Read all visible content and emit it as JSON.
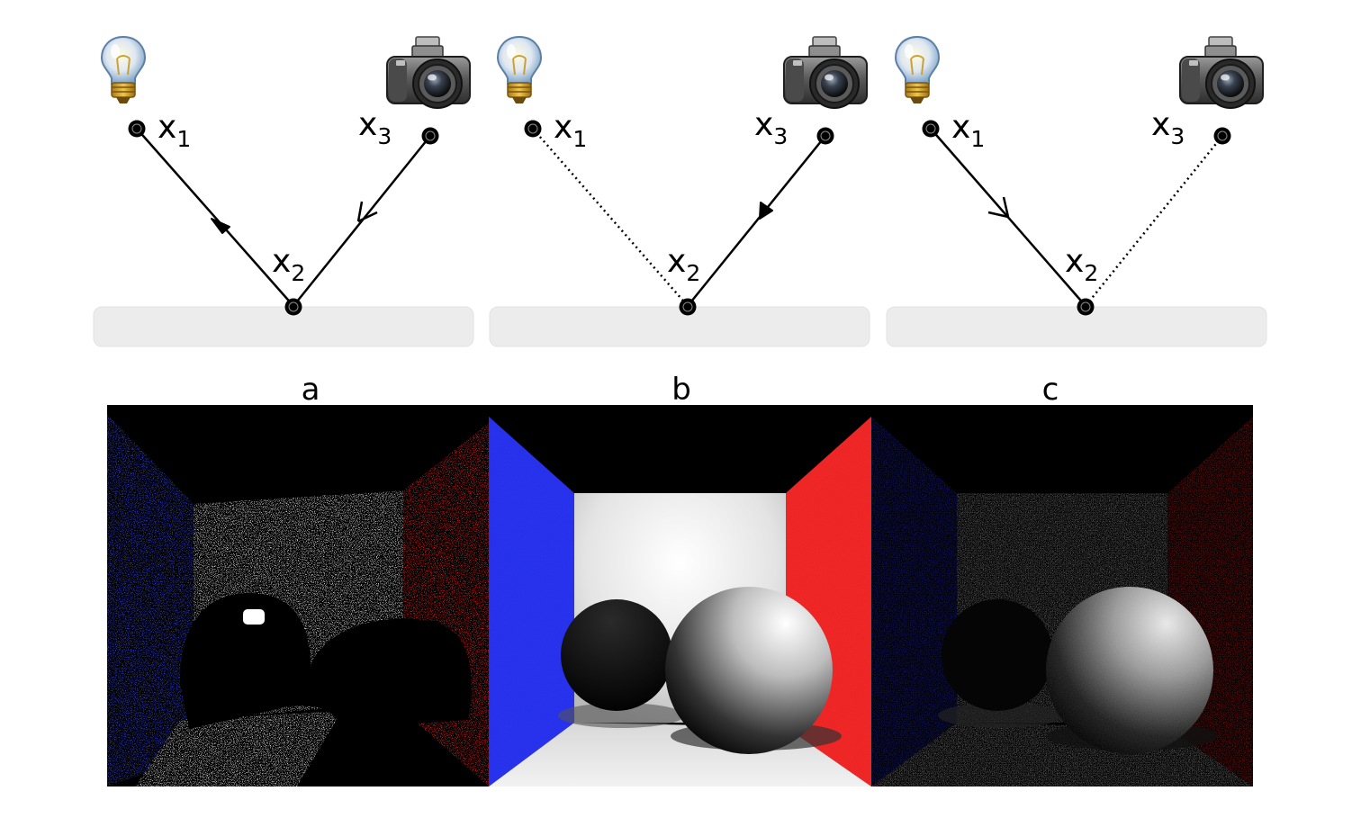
{
  "panels": [
    {
      "letter": "a",
      "points": {
        "x1": "x",
        "x1_sub": "1",
        "x2": "x",
        "x2_sub": "2",
        "x3": "x",
        "x3_sub": "3"
      },
      "segment_light": "solid",
      "segment_camera": "solid",
      "arrow_light_side": "filled",
      "arrow_camera_side": "open"
    },
    {
      "letter": "b",
      "points": {
        "x1": "x",
        "x1_sub": "1",
        "x2": "x",
        "x2_sub": "2",
        "x3": "x",
        "x3_sub": "3"
      },
      "segment_light": "dotted",
      "segment_camera": "solid",
      "arrow_light_side": "none",
      "arrow_camera_side": "filled"
    },
    {
      "letter": "c",
      "points": {
        "x1": "x",
        "x1_sub": "1",
        "x2": "x",
        "x2_sub": "2",
        "x3": "x",
        "x3_sub": "3"
      },
      "segment_light": "solid",
      "segment_camera": "dotted",
      "arrow_light_side": "open",
      "arrow_camera_side": "none"
    }
  ],
  "icons": {
    "light": "lightbulb-icon",
    "camera": "camera-icon"
  },
  "renders": [
    {
      "panel": "a",
      "style": "sparse-speckle"
    },
    {
      "panel": "b",
      "style": "smooth"
    },
    {
      "panel": "c",
      "style": "grainy"
    }
  ],
  "colors": {
    "floor": "#ececec",
    "left_wall": "#2b3bd6",
    "right_wall": "#dd1c1c",
    "back_wall": "#f2f2f2",
    "room_dark": "#000000",
    "ink": "#000000"
  }
}
